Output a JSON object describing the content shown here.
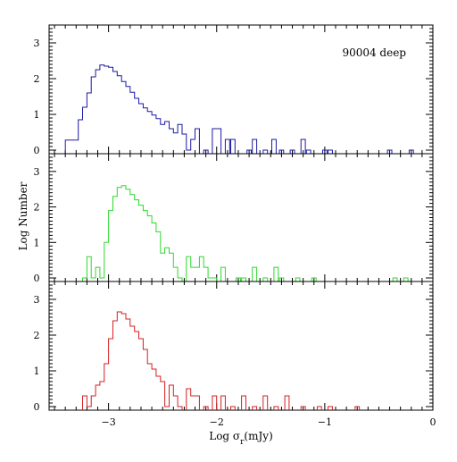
{
  "chart_data": {
    "type": "histogram",
    "layout": "three vertically stacked panels sharing the x axis",
    "xlabel": "Log σ_r(mJy)",
    "ylabel": "Log Number",
    "xlim": [
      -3.55,
      0
    ],
    "ylim": [
      -0.1,
      3.5
    ],
    "x_ticks": [
      -3,
      -2,
      -1,
      0
    ],
    "x_tick_labels": [
      "−3",
      "−2",
      "−1",
      "0"
    ],
    "y_ticks": [
      0,
      1,
      2,
      3
    ],
    "annotation": "90004 deep",
    "panels": [
      {
        "color": "#1a1aa6",
        "bin_width": 0.04,
        "points": [
          [
            -3.38,
            0.28
          ],
          [
            -3.34,
            0.28
          ],
          [
            -3.3,
            0.28
          ],
          [
            -3.26,
            0.85
          ],
          [
            -3.22,
            1.2
          ],
          [
            -3.18,
            1.6
          ],
          [
            -3.14,
            2.05
          ],
          [
            -3.1,
            2.25
          ],
          [
            -3.06,
            2.38
          ],
          [
            -3.02,
            2.35
          ],
          [
            -2.98,
            2.32
          ],
          [
            -2.94,
            2.2
          ],
          [
            -2.9,
            2.08
          ],
          [
            -2.86,
            1.92
          ],
          [
            -2.82,
            1.78
          ],
          [
            -2.78,
            1.62
          ],
          [
            -2.74,
            1.45
          ],
          [
            -2.7,
            1.3
          ],
          [
            -2.66,
            1.18
          ],
          [
            -2.62,
            1.08
          ],
          [
            -2.58,
            0.98
          ],
          [
            -2.54,
            0.88
          ],
          [
            -2.5,
            0.72
          ],
          [
            -2.46,
            0.8
          ],
          [
            -2.42,
            0.6
          ],
          [
            -2.38,
            0.48
          ],
          [
            -2.34,
            0.72
          ],
          [
            -2.3,
            0.45
          ],
          [
            -2.26,
            0.0
          ],
          [
            -2.22,
            0.3
          ],
          [
            -2.18,
            0.6
          ],
          [
            -2.1,
            0.0
          ],
          [
            -2.02,
            0.6
          ],
          [
            -1.98,
            0.6
          ],
          [
            -1.9,
            0.3
          ],
          [
            -1.85,
            0.3
          ],
          [
            -1.7,
            0.0
          ],
          [
            -1.65,
            0.3
          ],
          [
            -1.55,
            0.0
          ],
          [
            -1.47,
            0.3
          ],
          [
            -1.4,
            0.0
          ],
          [
            -1.3,
            0.0
          ],
          [
            -1.2,
            0.3
          ],
          [
            -1.15,
            0.0
          ],
          [
            -1.0,
            0.0
          ],
          [
            -0.95,
            0.0
          ],
          [
            -0.4,
            0.0
          ],
          [
            -0.2,
            0.0
          ]
        ]
      },
      {
        "color": "#2ed82e",
        "bin_width": 0.04,
        "points": [
          [
            -3.22,
            0.0
          ],
          [
            -3.18,
            0.6
          ],
          [
            -3.14,
            0.0
          ],
          [
            -3.1,
            0.3
          ],
          [
            -3.06,
            0.0
          ],
          [
            -3.02,
            1.0
          ],
          [
            -2.98,
            1.9
          ],
          [
            -2.94,
            2.3
          ],
          [
            -2.9,
            2.55
          ],
          [
            -2.86,
            2.6
          ],
          [
            -2.82,
            2.5
          ],
          [
            -2.78,
            2.35
          ],
          [
            -2.74,
            2.2
          ],
          [
            -2.7,
            2.05
          ],
          [
            -2.66,
            1.9
          ],
          [
            -2.62,
            1.75
          ],
          [
            -2.58,
            1.55
          ],
          [
            -2.54,
            1.3
          ],
          [
            -2.5,
            0.7
          ],
          [
            -2.46,
            0.85
          ],
          [
            -2.42,
            0.7
          ],
          [
            -2.38,
            0.3
          ],
          [
            -2.34,
            0.0
          ],
          [
            -2.26,
            0.6
          ],
          [
            -2.22,
            0.3
          ],
          [
            -2.18,
            0.3
          ],
          [
            -2.14,
            0.6
          ],
          [
            -2.1,
            0.3
          ],
          [
            -2.06,
            0.0
          ],
          [
            -2.02,
            0.0
          ],
          [
            -1.94,
            0.3
          ],
          [
            -1.8,
            0.0
          ],
          [
            -1.75,
            0.0
          ],
          [
            -1.65,
            0.3
          ],
          [
            -1.55,
            0.0
          ],
          [
            -1.45,
            0.3
          ],
          [
            -1.4,
            0.0
          ],
          [
            -1.25,
            0.0
          ],
          [
            -1.1,
            0.0
          ],
          [
            -0.35,
            0.0
          ],
          [
            -0.25,
            0.0
          ]
        ]
      },
      {
        "color": "#d42020",
        "bin_width": 0.04,
        "points": [
          [
            -3.22,
            0.3
          ],
          [
            -3.18,
            0.0
          ],
          [
            -3.14,
            0.3
          ],
          [
            -3.1,
            0.6
          ],
          [
            -3.06,
            0.7
          ],
          [
            -3.02,
            1.2
          ],
          [
            -2.98,
            1.9
          ],
          [
            -2.94,
            2.4
          ],
          [
            -2.9,
            2.65
          ],
          [
            -2.86,
            2.6
          ],
          [
            -2.82,
            2.45
          ],
          [
            -2.78,
            2.25
          ],
          [
            -2.74,
            2.1
          ],
          [
            -2.7,
            1.9
          ],
          [
            -2.66,
            1.6
          ],
          [
            -2.62,
            1.2
          ],
          [
            -2.58,
            1.05
          ],
          [
            -2.54,
            0.85
          ],
          [
            -2.5,
            0.7
          ],
          [
            -2.46,
            0.0
          ],
          [
            -2.42,
            0.6
          ],
          [
            -2.38,
            0.3
          ],
          [
            -2.34,
            0.0
          ],
          [
            -2.26,
            0.5
          ],
          [
            -2.22,
            0.3
          ],
          [
            -2.18,
            0.3
          ],
          [
            -2.1,
            0.0
          ],
          [
            -2.02,
            0.3
          ],
          [
            -1.94,
            0.3
          ],
          [
            -1.85,
            0.0
          ],
          [
            -1.75,
            0.3
          ],
          [
            -1.65,
            0.0
          ],
          [
            -1.55,
            0.3
          ],
          [
            -1.45,
            0.0
          ],
          [
            -1.35,
            0.3
          ],
          [
            -1.2,
            0.0
          ],
          [
            -1.05,
            0.0
          ],
          [
            -0.95,
            0.0
          ],
          [
            -0.7,
            0.0
          ]
        ]
      }
    ]
  }
}
